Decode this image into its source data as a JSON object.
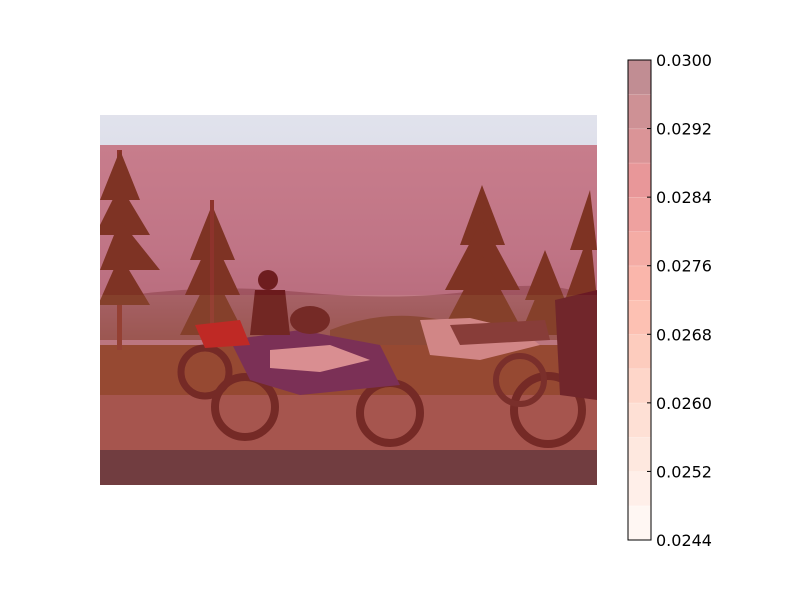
{
  "chart_data": {
    "type": "heatmap",
    "overlay_on_photo": true,
    "photo_description_hidden": true,
    "rows": [
      {
        "band": "top",
        "value": 0.0244
      },
      {
        "band": "upper",
        "value": 0.0286
      },
      {
        "band": "lower",
        "value": 0.0281
      },
      {
        "band": "bottom",
        "value": 0.03
      }
    ],
    "colorbar": {
      "min": 0.0244,
      "max": 0.03,
      "levels": [
        0.0244,
        0.0248,
        0.0252,
        0.0256,
        0.026,
        0.0264,
        0.0268,
        0.0272,
        0.0276,
        0.028,
        0.0284,
        0.0288,
        0.0292,
        0.0296,
        0.03
      ],
      "ticks": [
        "0.0244",
        "0.0252",
        "0.0260",
        "0.0268",
        "0.0276",
        "0.0284",
        "0.0292",
        "0.0300"
      ],
      "colormap": "Reds"
    },
    "title": "",
    "xlabel": "",
    "ylabel": "",
    "grid": false
  }
}
